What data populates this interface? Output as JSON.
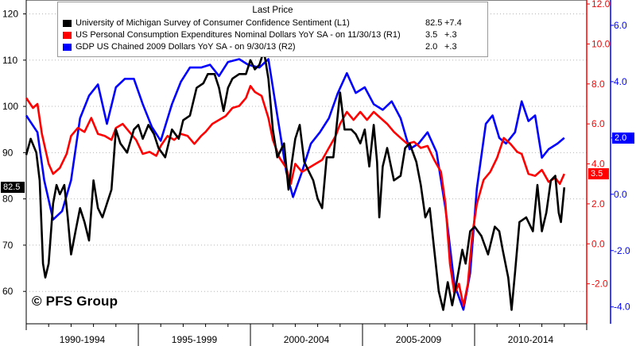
{
  "chart_data": {
    "type": "line",
    "legend": {
      "title": "Last Price",
      "entries": [
        {
          "name": "University of Michigan Survey of Consumer Confidence Sentiment  (L1)",
          "last": "82.5",
          "change": "+7.4",
          "color": "#000000"
        },
        {
          "name": "US Personal Consumption Expenditures Nominal Dollars YoY SA -  on 11/30/13  (R1)",
          "last": "3.5",
          "change": "+.3",
          "color": "#ff0000"
        },
        {
          "name": "GDP US Chained 2009 Dollars YoY SA -  on 9/30/13  (R2)",
          "last": "2.0",
          "change": "+.3",
          "color": "#0000ff"
        }
      ]
    },
    "watermark": "© PFS Group",
    "x_periods": [
      "1990-1994",
      "1995-1999",
      "2000-2004",
      "2005-2009",
      "2010-2014"
    ],
    "x_range": [
      1990.0,
      2015.0
    ],
    "axes": {
      "left": {
        "label": "L1",
        "range": [
          53,
          123
        ],
        "ticks": [
          60,
          70,
          80,
          90,
          100,
          110,
          120
        ],
        "tick_labels": [
          "60",
          "70",
          "80",
          "90",
          "100",
          "110",
          "120"
        ]
      },
      "right1": {
        "label": "R1",
        "range": [
          -4.0,
          12.2
        ],
        "ticks": [
          -2,
          0,
          2,
          4,
          6,
          8,
          10,
          12
        ],
        "tick_labels": [
          "-2.0",
          "0.0",
          "2.0",
          "4.0",
          "6.0",
          "8.0",
          "10.0",
          "12.0"
        ],
        "color": "#ff0000"
      },
      "right2": {
        "label": "R2",
        "range": [
          -4.6,
          6.9
        ],
        "ticks": [
          -4,
          -2,
          0,
          2,
          4,
          6
        ],
        "tick_labels": [
          "-4.0",
          "-2.0",
          "0.0",
          "2.0",
          "4.0",
          "6.0"
        ],
        "color": "#0000ff"
      }
    },
    "last_value_tags": [
      {
        "series": "University of Michigan Survey of Consumer Confidence Sentiment",
        "value": 82.5,
        "label": "82.5",
        "axis": "left",
        "color": "#000000"
      },
      {
        "series": "US Personal Consumption Expenditures",
        "value": 3.5,
        "label": "3.5",
        "axis": "right1",
        "color": "#ff0000"
      },
      {
        "series": "GDP US Chained 2009 Dollars YoY",
        "value": 2.0,
        "label": "2.0",
        "axis": "right2",
        "color": "#0000ff"
      }
    ],
    "series": [
      {
        "name": "University of Michigan Survey of Consumer Confidence Sentiment",
        "axis": "left",
        "color": "#000000",
        "points": [
          [
            1990.0,
            89.5
          ],
          [
            1990.2,
            93
          ],
          [
            1990.45,
            90
          ],
          [
            1990.6,
            84
          ],
          [
            1990.75,
            66
          ],
          [
            1990.85,
            63
          ],
          [
            1991.0,
            66
          ],
          [
            1991.2,
            79
          ],
          [
            1991.35,
            83
          ],
          [
            1991.5,
            81
          ],
          [
            1991.7,
            83
          ],
          [
            1991.85,
            76
          ],
          [
            1992.0,
            68
          ],
          [
            1992.2,
            73
          ],
          [
            1992.4,
            78
          ],
          [
            1992.6,
            75
          ],
          [
            1992.8,
            71
          ],
          [
            1993.0,
            84
          ],
          [
            1993.2,
            78
          ],
          [
            1993.4,
            76
          ],
          [
            1993.6,
            79
          ],
          [
            1993.8,
            82
          ],
          [
            1994.0,
            95
          ],
          [
            1994.2,
            92
          ],
          [
            1994.5,
            90
          ],
          [
            1994.8,
            95
          ],
          [
            1995.0,
            96
          ],
          [
            1995.2,
            93
          ],
          [
            1995.45,
            96
          ],
          [
            1995.7,
            94
          ],
          [
            1995.9,
            91
          ],
          [
            1996.2,
            89
          ],
          [
            1996.5,
            95
          ],
          [
            1996.8,
            93
          ],
          [
            1997.0,
            97
          ],
          [
            1997.3,
            98
          ],
          [
            1997.6,
            104
          ],
          [
            1997.9,
            105
          ],
          [
            1998.1,
            107
          ],
          [
            1998.4,
            107
          ],
          [
            1998.6,
            104
          ],
          [
            1998.8,
            99
          ],
          [
            1999.0,
            104
          ],
          [
            1999.2,
            106
          ],
          [
            1999.5,
            107
          ],
          [
            1999.8,
            107
          ],
          [
            2000.0,
            110
          ],
          [
            2000.2,
            108
          ],
          [
            2000.4,
            109
          ],
          [
            2000.6,
            112
          ],
          [
            2000.8,
            106
          ],
          [
            2001.0,
            95
          ],
          [
            2001.2,
            89
          ],
          [
            2001.5,
            92
          ],
          [
            2001.7,
            82
          ],
          [
            2001.85,
            88
          ],
          [
            2002.0,
            93
          ],
          [
            2002.2,
            96
          ],
          [
            2002.4,
            88
          ],
          [
            2002.6,
            86
          ],
          [
            2002.8,
            84
          ],
          [
            2003.0,
            80
          ],
          [
            2003.2,
            78
          ],
          [
            2003.4,
            89
          ],
          [
            2003.7,
            89
          ],
          [
            2004.0,
            103
          ],
          [
            2004.2,
            95
          ],
          [
            2004.5,
            95
          ],
          [
            2004.7,
            94
          ],
          [
            2004.9,
            92
          ],
          [
            2005.1,
            95
          ],
          [
            2005.3,
            87
          ],
          [
            2005.5,
            96
          ],
          [
            2005.65,
            88
          ],
          [
            2005.75,
            76
          ],
          [
            2005.9,
            87
          ],
          [
            2006.1,
            91
          ],
          [
            2006.4,
            84
          ],
          [
            2006.7,
            85
          ],
          [
            2006.9,
            91
          ],
          [
            2007.1,
            92
          ],
          [
            2007.4,
            88
          ],
          [
            2007.6,
            83
          ],
          [
            2007.8,
            76
          ],
          [
            2008.0,
            78
          ],
          [
            2008.2,
            69
          ],
          [
            2008.4,
            60
          ],
          [
            2008.6,
            56
          ],
          [
            2008.8,
            62
          ],
          [
            2009.0,
            57
          ],
          [
            2009.2,
            62
          ],
          [
            2009.45,
            69
          ],
          [
            2009.6,
            66
          ],
          [
            2009.8,
            73
          ],
          [
            2010.0,
            74
          ],
          [
            2010.3,
            72
          ],
          [
            2010.6,
            68
          ],
          [
            2010.9,
            74
          ],
          [
            2011.1,
            73
          ],
          [
            2011.25,
            69
          ],
          [
            2011.5,
            63
          ],
          [
            2011.65,
            56
          ],
          [
            2011.8,
            64
          ],
          [
            2012.0,
            75
          ],
          [
            2012.3,
            76
          ],
          [
            2012.6,
            73
          ],
          [
            2012.8,
            83
          ],
          [
            2013.0,
            73
          ],
          [
            2013.2,
            77
          ],
          [
            2013.4,
            84
          ],
          [
            2013.6,
            85
          ],
          [
            2013.75,
            77
          ],
          [
            2013.85,
            75
          ],
          [
            2014.0,
            82.5
          ]
        ]
      },
      {
        "name": "US Personal Consumption Expenditures Nominal Dollars YoY SA",
        "axis": "right1",
        "color": "#ff0000",
        "points": [
          [
            1990.0,
            7.3
          ],
          [
            1990.3,
            6.8
          ],
          [
            1990.5,
            7.0
          ],
          [
            1990.7,
            5.5
          ],
          [
            1991.0,
            4.0
          ],
          [
            1991.2,
            3.5
          ],
          [
            1991.5,
            3.8
          ],
          [
            1991.8,
            4.5
          ],
          [
            1992.0,
            5.4
          ],
          [
            1992.3,
            5.8
          ],
          [
            1992.6,
            5.6
          ],
          [
            1992.9,
            6.3
          ],
          [
            1993.2,
            5.5
          ],
          [
            1993.5,
            5.4
          ],
          [
            1993.8,
            5.2
          ],
          [
            1994.0,
            5.8
          ],
          [
            1994.3,
            6.0
          ],
          [
            1994.6,
            5.6
          ],
          [
            1994.9,
            5.2
          ],
          [
            1995.2,
            4.5
          ],
          [
            1995.5,
            4.6
          ],
          [
            1995.8,
            4.4
          ],
          [
            1996.0,
            4.9
          ],
          [
            1996.3,
            5.4
          ],
          [
            1996.6,
            5.2
          ],
          [
            1996.9,
            5.5
          ],
          [
            1997.2,
            5.4
          ],
          [
            1997.5,
            5.0
          ],
          [
            1997.8,
            5.4
          ],
          [
            1998.0,
            5.6
          ],
          [
            1998.3,
            6.0
          ],
          [
            1998.6,
            6.2
          ],
          [
            1998.9,
            6.4
          ],
          [
            1999.2,
            6.8
          ],
          [
            1999.5,
            6.9
          ],
          [
            1999.8,
            7.3
          ],
          [
            2000.0,
            7.9
          ],
          [
            2000.2,
            7.6
          ],
          [
            2000.5,
            7.4
          ],
          [
            2000.8,
            6.3
          ],
          [
            2001.0,
            5.2
          ],
          [
            2001.3,
            4.3
          ],
          [
            2001.6,
            3.8
          ],
          [
            2001.8,
            3.0
          ],
          [
            2002.0,
            4.0
          ],
          [
            2002.3,
            3.6
          ],
          [
            2002.6,
            3.8
          ],
          [
            2002.9,
            4.0
          ],
          [
            2003.2,
            4.2
          ],
          [
            2003.5,
            4.8
          ],
          [
            2003.8,
            5.4
          ],
          [
            2004.0,
            6.0
          ],
          [
            2004.3,
            6.6
          ],
          [
            2004.6,
            6.2
          ],
          [
            2004.9,
            6.6
          ],
          [
            2005.2,
            6.2
          ],
          [
            2005.5,
            6.6
          ],
          [
            2005.8,
            6.3
          ],
          [
            2006.1,
            6.0
          ],
          [
            2006.4,
            5.6
          ],
          [
            2006.7,
            5.3
          ],
          [
            2007.0,
            5.0
          ],
          [
            2007.3,
            5.1
          ],
          [
            2007.6,
            4.8
          ],
          [
            2007.9,
            4.9
          ],
          [
            2008.2,
            4.2
          ],
          [
            2008.5,
            3.6
          ],
          [
            2008.7,
            2.0
          ],
          [
            2008.9,
            -1.0
          ],
          [
            2009.1,
            -2.5
          ],
          [
            2009.3,
            -2.0
          ],
          [
            2009.5,
            -3.1
          ],
          [
            2009.7,
            -2.0
          ],
          [
            2009.9,
            0.5
          ],
          [
            2010.1,
            2.0
          ],
          [
            2010.4,
            3.2
          ],
          [
            2010.7,
            3.6
          ],
          [
            2011.0,
            4.3
          ],
          [
            2011.3,
            5.3
          ],
          [
            2011.6,
            5.0
          ],
          [
            2011.9,
            4.6
          ],
          [
            2012.1,
            4.5
          ],
          [
            2012.4,
            3.5
          ],
          [
            2012.7,
            3.4
          ],
          [
            2013.0,
            3.7
          ],
          [
            2013.3,
            3.1
          ],
          [
            2013.6,
            3.3
          ],
          [
            2013.8,
            3.0
          ],
          [
            2014.0,
            3.5
          ]
        ]
      },
      {
        "name": "GDP US Chained 2009 Dollars YoY SA",
        "axis": "right2",
        "color": "#0000ff",
        "points": [
          [
            1990.0,
            2.8
          ],
          [
            1990.5,
            2.2
          ],
          [
            1990.8,
            0.5
          ],
          [
            1991.2,
            -0.9
          ],
          [
            1991.6,
            -0.6
          ],
          [
            1992.0,
            0.5
          ],
          [
            1992.4,
            2.7
          ],
          [
            1992.8,
            3.5
          ],
          [
            1993.2,
            3.9
          ],
          [
            1993.6,
            2.5
          ],
          [
            1994.0,
            3.8
          ],
          [
            1994.4,
            4.1
          ],
          [
            1994.8,
            4.1
          ],
          [
            1995.2,
            3.2
          ],
          [
            1995.6,
            2.4
          ],
          [
            1996.0,
            1.9
          ],
          [
            1996.5,
            3.2
          ],
          [
            1996.9,
            4.0
          ],
          [
            1997.3,
            4.5
          ],
          [
            1997.8,
            4.5
          ],
          [
            1998.2,
            4.6
          ],
          [
            1998.6,
            4.2
          ],
          [
            1999.0,
            4.7
          ],
          [
            1999.5,
            4.8
          ],
          [
            1999.9,
            4.6
          ],
          [
            2000.4,
            4.5
          ],
          [
            2000.8,
            4.8
          ],
          [
            2001.2,
            2.8
          ],
          [
            2001.6,
            0.8
          ],
          [
            2001.9,
            -0.1
          ],
          [
            2002.3,
            0.8
          ],
          [
            2002.7,
            1.8
          ],
          [
            2003.1,
            2.2
          ],
          [
            2003.5,
            2.7
          ],
          [
            2003.9,
            3.6
          ],
          [
            2004.3,
            4.3
          ],
          [
            2004.7,
            3.6
          ],
          [
            2005.1,
            3.8
          ],
          [
            2005.5,
            3.2
          ],
          [
            2005.9,
            3.0
          ],
          [
            2006.3,
            3.3
          ],
          [
            2006.7,
            2.7
          ],
          [
            2007.1,
            1.6
          ],
          [
            2007.5,
            1.8
          ],
          [
            2007.9,
            2.2
          ],
          [
            2008.3,
            1.5
          ],
          [
            2008.7,
            -0.5
          ],
          [
            2009.1,
            -3.2
          ],
          [
            2009.5,
            -4.1
          ],
          [
            2009.8,
            -2.8
          ],
          [
            2010.1,
            0.2
          ],
          [
            2010.5,
            2.5
          ],
          [
            2010.8,
            2.8
          ],
          [
            2011.1,
            2.0
          ],
          [
            2011.4,
            1.8
          ],
          [
            2011.8,
            2.2
          ],
          [
            2012.1,
            3.3
          ],
          [
            2012.4,
            2.6
          ],
          [
            2012.7,
            2.8
          ],
          [
            2013.0,
            1.3
          ],
          [
            2013.3,
            1.6
          ],
          [
            2013.7,
            1.8
          ],
          [
            2014.0,
            2.0
          ]
        ]
      }
    ]
  }
}
